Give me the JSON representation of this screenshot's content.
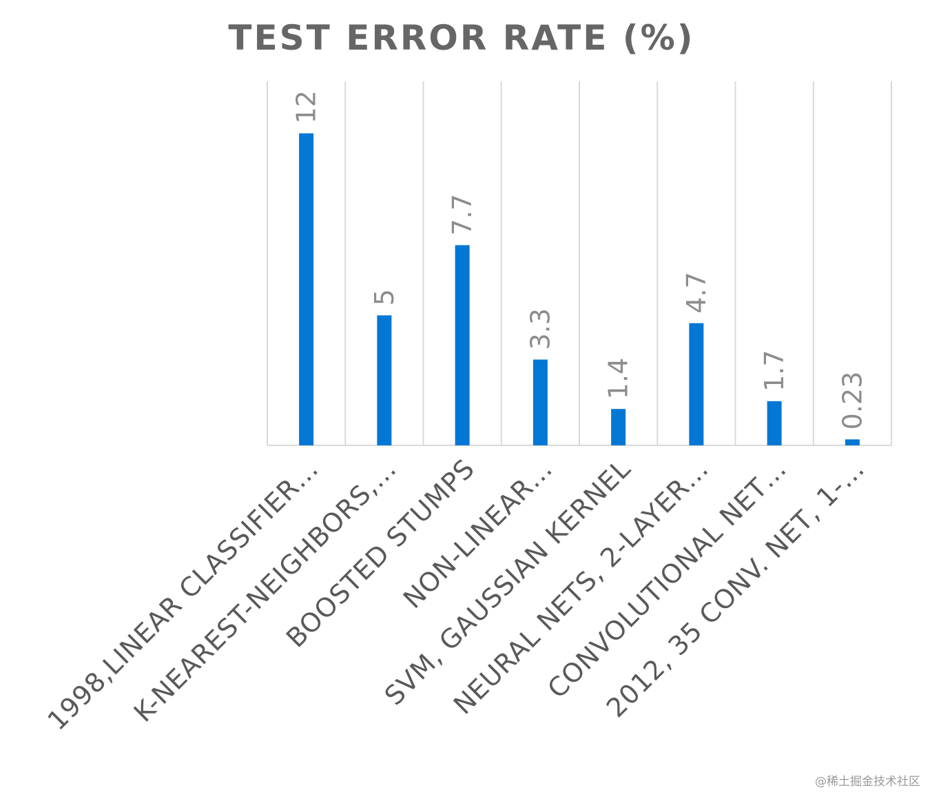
{
  "chart_data": {
    "type": "bar",
    "title": "TEST ERROR RATE (%)",
    "categories": [
      "1998,LINEAR CLASSIFIER…",
      "K-NEAREST-NEIGHBORS,…",
      "BOOSTED STUMPS",
      "NON-LINEAR…",
      "SVM, GAUSSIAN KERNEL",
      "NEURAL NETS, 2-LAYER…",
      "CONVOLUTIONAL NET…",
      "2012, 35 CONV. NET, 1-…"
    ],
    "values": [
      12,
      5,
      7.7,
      3.3,
      1.4,
      4.7,
      1.7,
      0.23
    ],
    "data_labels": [
      "12",
      "5",
      "7.7",
      "3.3",
      "1.4",
      "4.7",
      "1.7",
      "0.23"
    ],
    "ylim": [
      0,
      14
    ],
    "grid": "vertical",
    "legend": "none",
    "bar_color": "#0277d4"
  },
  "watermark": "@稀土掘金技术社区"
}
